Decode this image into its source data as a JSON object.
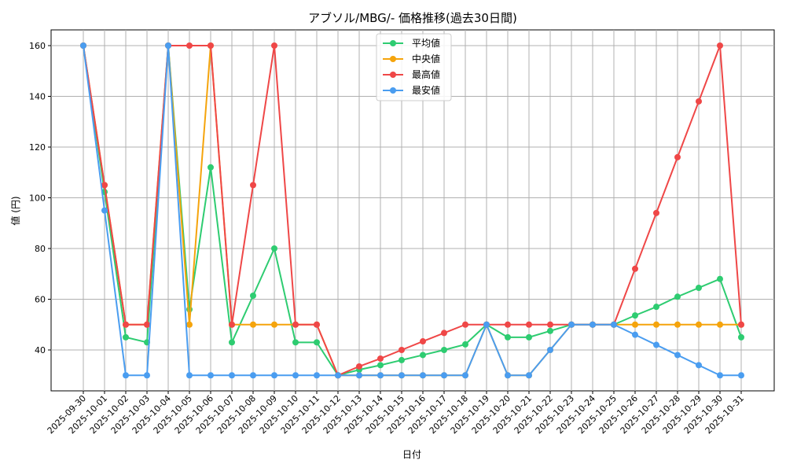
{
  "chart_data": {
    "type": "line",
    "title": "アブソル/MBG/- 価格推移(過去30日間)",
    "xlabel": "日付",
    "ylabel": "値 (円)",
    "ylim": [
      24,
      166
    ],
    "yticks": [
      40,
      60,
      80,
      100,
      120,
      140,
      160
    ],
    "grid": true,
    "legend_position": "upper center",
    "categories": [
      "2025-09-30",
      "2025-10-01",
      "2025-10-02",
      "2025-10-03",
      "2025-10-04",
      "2025-10-05",
      "2025-10-06",
      "2025-10-07",
      "2025-10-08",
      "2025-10-09",
      "2025-10-10",
      "2025-10-11",
      "2025-10-12",
      "2025-10-13",
      "2025-10-14",
      "2025-10-15",
      "2025-10-16",
      "2025-10-17",
      "2025-10-18",
      "2025-10-19",
      "2025-10-20",
      "2025-10-21",
      "2025-10-22",
      "2025-10-23",
      "2025-10-24",
      "2025-10-25",
      "2025-10-26",
      "2025-10-27",
      "2025-10-28",
      "2025-10-29",
      "2025-10-30",
      "2025-10-31"
    ],
    "series": [
      {
        "name": "平均値",
        "color": "#2ecc71",
        "values": [
          160,
          102.3,
          45,
          43,
          160,
          56,
          112,
          43,
          61.4,
          80,
          43,
          43,
          30,
          32.2,
          34,
          36,
          38,
          40,
          42.2,
          50,
          45,
          45,
          47.5,
          50,
          50,
          50,
          53.6,
          57,
          61,
          64.5,
          68,
          45
        ]
      },
      {
        "name": "中央値",
        "color": "#f5a40c",
        "values": [
          160,
          105,
          50,
          50,
          160,
          50,
          160,
          50,
          50,
          50,
          50,
          50,
          30,
          30,
          30,
          30,
          30,
          30,
          30,
          50,
          30,
          30,
          40,
          50,
          50,
          50,
          50,
          50,
          50,
          50,
          50,
          50
        ]
      },
      {
        "name": "最高値",
        "color": "#ef4747",
        "values": [
          160,
          105,
          50,
          50,
          160,
          160,
          160,
          50,
          105,
          160,
          50,
          50,
          30,
          33.5,
          36.6,
          40,
          43.4,
          46.7,
          50,
          50,
          50,
          50,
          50,
          50,
          50,
          50,
          72,
          94,
          116,
          138,
          160,
          50
        ]
      },
      {
        "name": "最安値",
        "color": "#4a9df0",
        "values": [
          160,
          95,
          30,
          30,
          160,
          30,
          30,
          30,
          30,
          30,
          30,
          30,
          30,
          30,
          30,
          30,
          30,
          30,
          30,
          50,
          30,
          30,
          40,
          50,
          50,
          50,
          46,
          42,
          38,
          34,
          30,
          30
        ]
      }
    ]
  },
  "legend": {
    "items": [
      {
        "label": "平均値",
        "color": "#2ecc71"
      },
      {
        "label": "中央値",
        "color": "#f5a40c"
      },
      {
        "label": "最高値",
        "color": "#ef4747"
      },
      {
        "label": "最安値",
        "color": "#4a9df0"
      }
    ]
  }
}
